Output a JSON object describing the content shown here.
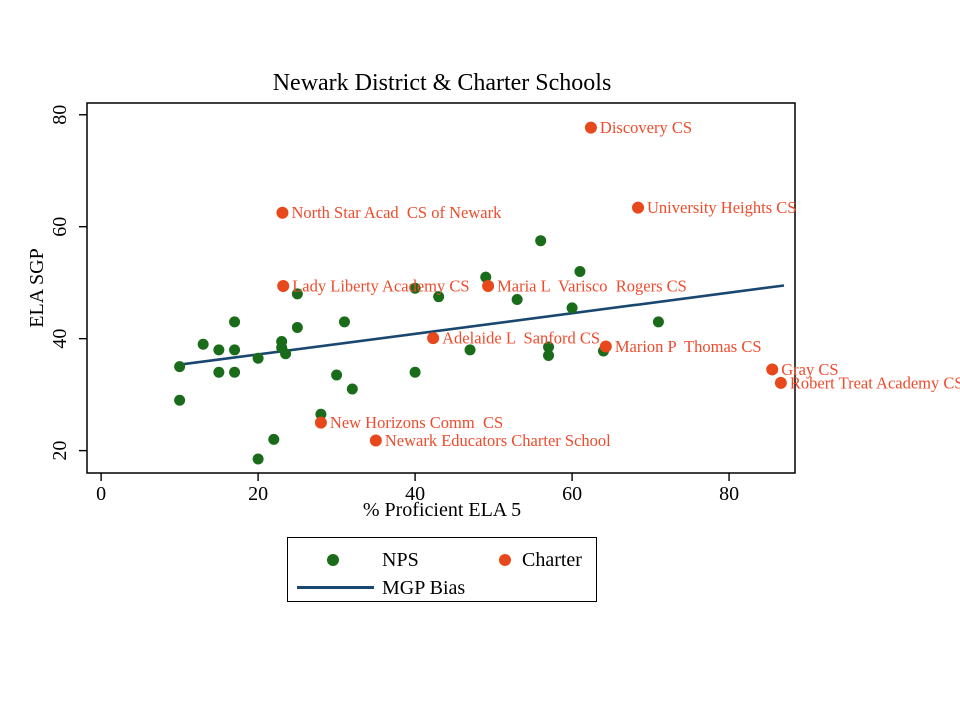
{
  "title": "Newark District & Charter Schools",
  "colors": {
    "nps_green": "#1a6b1a",
    "charter_orange": "#e8491c",
    "charter_label_text": "#ee4b2d",
    "mgp_line_navy": "#1a476f",
    "axis_black": "#000000",
    "background_white": "#ffffff"
  },
  "chart_data": {
    "type": "scatter",
    "title": "Newark District & Charter Schools",
    "xlabel": "% Proficient ELA 5",
    "ylabel": "ELA SGP",
    "xlim": [
      -1.8,
      88.4
    ],
    "ylim": [
      16,
      82.1
    ],
    "x_ticks": [
      0,
      20,
      40,
      60,
      80
    ],
    "y_ticks": [
      20,
      40,
      60,
      80
    ],
    "grid": false,
    "legend": {
      "position": "below-plot",
      "nps_label": "NPS",
      "charter_label": "Charter",
      "line_label": "MGP Bias"
    },
    "series": [
      {
        "name": "NPS",
        "type": "scatter",
        "marker": "circle",
        "color_key": "nps_green",
        "points": [
          [
            10,
            35
          ],
          [
            10,
            29
          ],
          [
            13,
            39
          ],
          [
            15,
            38
          ],
          [
            17,
            38
          ],
          [
            15,
            34
          ],
          [
            17,
            34
          ],
          [
            17,
            43
          ],
          [
            20,
            36.5
          ],
          [
            20,
            18.5
          ],
          [
            22,
            22
          ],
          [
            23,
            39.5
          ],
          [
            23,
            38.4
          ],
          [
            23.5,
            37.3
          ],
          [
            25,
            48
          ],
          [
            25,
            42
          ],
          [
            28,
            26.5
          ],
          [
            30,
            33.5
          ],
          [
            31,
            43
          ],
          [
            32,
            31
          ],
          [
            40,
            49
          ],
          [
            43,
            47.5
          ],
          [
            40,
            34
          ],
          [
            47,
            38
          ],
          [
            49,
            51
          ],
          [
            53,
            47
          ],
          [
            56,
            57.5
          ],
          [
            57,
            38.5
          ],
          [
            57,
            37
          ],
          [
            60,
            45.5
          ],
          [
            61,
            52
          ],
          [
            64,
            37.8
          ],
          [
            71,
            43
          ]
        ]
      },
      {
        "name": "Charter",
        "type": "scatter",
        "marker": "circle",
        "color_key": "charter_orange",
        "points": [
          {
            "x": 62.4,
            "y": 77.7,
            "label": "Discovery CS"
          },
          {
            "x": 68.4,
            "y": 63.4,
            "label": "University Heights CS"
          },
          {
            "x": 23.1,
            "y": 62.5,
            "label": "North Star Acad  CS of Newark"
          },
          {
            "x": 23.2,
            "y": 49.4,
            "label": "Lady Liberty Academy CS"
          },
          {
            "x": 49.3,
            "y": 49.4,
            "label": "Maria L  Varisco  Rogers CS"
          },
          {
            "x": 42.3,
            "y": 40.1,
            "label": "Adelaide L  Sanford CS"
          },
          {
            "x": 64.3,
            "y": 38.6,
            "label": "Marion P  Thomas CS"
          },
          {
            "x": 85.5,
            "y": 34.5,
            "label": "Gray CS"
          },
          {
            "x": 86.6,
            "y": 32.1,
            "label": "Robert Treat Academy CS"
          },
          {
            "x": 28,
            "y": 25,
            "label": "New Horizons Comm  CS"
          },
          {
            "x": 35,
            "y": 21.8,
            "label": "Newark Educators Charter School"
          }
        ]
      },
      {
        "name": "MGP Bias",
        "type": "line",
        "color_key": "mgp_line_navy",
        "points": [
          [
            9.7,
            35.3
          ],
          [
            87,
            49.5
          ]
        ]
      }
    ]
  }
}
